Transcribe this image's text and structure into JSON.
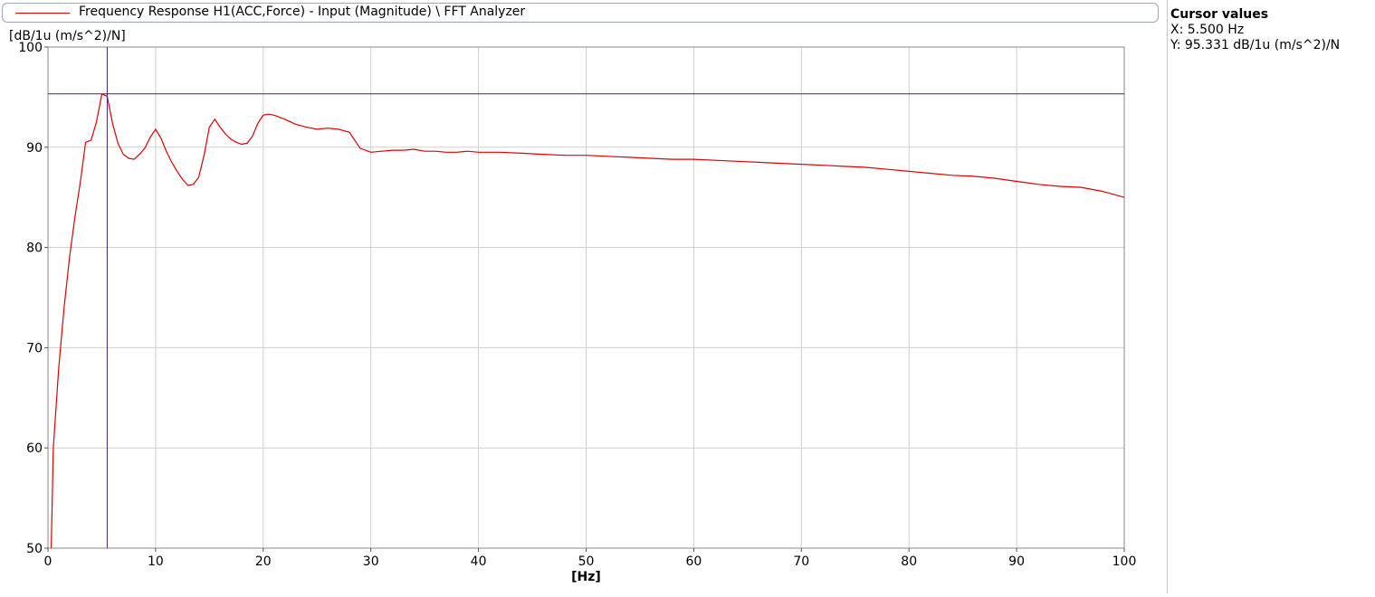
{
  "legend": {
    "label": "Frequency Response H1(ACC,Force) - Input (Magnitude) \\ FFT Analyzer",
    "color": "#e00000"
  },
  "cursor_panel": {
    "title": "Cursor values",
    "x_text": "X: 5.500 Hz",
    "y_text": "Y: 95.331 dB/1u (m/s^2)/N"
  },
  "chart_data": {
    "type": "line",
    "xlabel": "[Hz]",
    "ylabel": "[dB/1u (m/s^2)/N]",
    "xlim": [
      0,
      100
    ],
    "ylim": [
      50,
      100
    ],
    "xticks": [
      0,
      10,
      20,
      30,
      40,
      50,
      60,
      70,
      80,
      90,
      100
    ],
    "yticks": [
      50,
      60,
      70,
      80,
      90,
      100
    ],
    "grid": true,
    "cursor": {
      "x": 5.5,
      "y": 95.331,
      "color": "#4b1a7a"
    },
    "series": [
      {
        "color": "#e00000",
        "x": [
          0.3,
          0.5,
          1,
          1.5,
          2,
          2.5,
          3,
          3.5,
          4,
          4.5,
          5,
          5.5,
          6,
          6.5,
          7,
          7.5,
          8,
          8.5,
          9,
          9.5,
          10,
          10.5,
          11,
          11.5,
          12,
          12.5,
          13,
          13.5,
          14,
          14.5,
          15,
          15.5,
          16,
          16.5,
          17,
          17.5,
          18,
          18.5,
          19,
          19.5,
          20,
          20.5,
          21,
          21.5,
          22,
          23,
          24,
          25,
          26,
          27,
          28,
          29,
          30,
          31,
          32,
          33,
          34,
          35,
          36,
          37,
          38,
          39,
          40,
          42,
          44,
          46,
          48,
          50,
          52,
          54,
          56,
          58,
          60,
          62,
          64,
          66,
          68,
          70,
          72,
          74,
          76,
          78,
          80,
          82,
          84,
          86,
          88,
          90,
          92,
          94,
          96,
          98,
          100
        ],
        "y": [
          50,
          60,
          68,
          74,
          79,
          83,
          86.5,
          90.5,
          90.7,
          92.5,
          95.3,
          95.1,
          92.4,
          90.4,
          89.3,
          88.9,
          88.8,
          89.3,
          89.9,
          91,
          91.8,
          90.9,
          89.6,
          88.5,
          87.6,
          86.8,
          86.2,
          86.3,
          87,
          89.2,
          92,
          92.8,
          92,
          91.3,
          90.8,
          90.5,
          90.3,
          90.4,
          91.1,
          92.4,
          93.2,
          93.3,
          93.2,
          93,
          92.8,
          92.3,
          92,
          91.8,
          91.9,
          91.8,
          91.5,
          89.9,
          89.5,
          89.6,
          89.7,
          89.7,
          89.8,
          89.6,
          89.6,
          89.5,
          89.5,
          89.6,
          89.5,
          89.5,
          89.4,
          89.3,
          89.2,
          89.2,
          89.1,
          89.0,
          88.9,
          88.8,
          88.8,
          88.7,
          88.6,
          88.5,
          88.4,
          88.3,
          88.2,
          88.1,
          88.0,
          87.8,
          87.6,
          87.4,
          87.2,
          87.1,
          86.9,
          86.6,
          86.3,
          86.1,
          86.0,
          85.6,
          85.0
        ]
      }
    ]
  }
}
